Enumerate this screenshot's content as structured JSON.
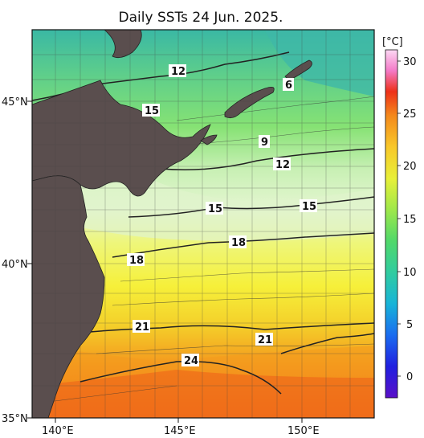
{
  "title": "Daily SSTs 24 Jun. 2025.",
  "axes": {
    "lat_labels": [
      "45°N",
      "40°N",
      "35°N"
    ],
    "lon_labels": [
      "140°E",
      "145°E",
      "150°E"
    ]
  },
  "colorbar": {
    "unit": "[°C]",
    "ticks": [
      "30",
      "25",
      "20",
      "15",
      "10",
      "5",
      "0"
    ]
  },
  "contour_labels": [
    "12",
    "6",
    "15",
    "9",
    "12",
    "15",
    "15",
    "18",
    "18",
    "21",
    "21",
    "24"
  ],
  "colors": {
    "land": "#5a4e4e",
    "cold": "#3fbfa0",
    "cool": "#7ee07a",
    "mild": "#d8f2c8",
    "warm": "#f3ee3a",
    "hot": "#f49a1e",
    "hottest": "#ee5a18"
  }
}
